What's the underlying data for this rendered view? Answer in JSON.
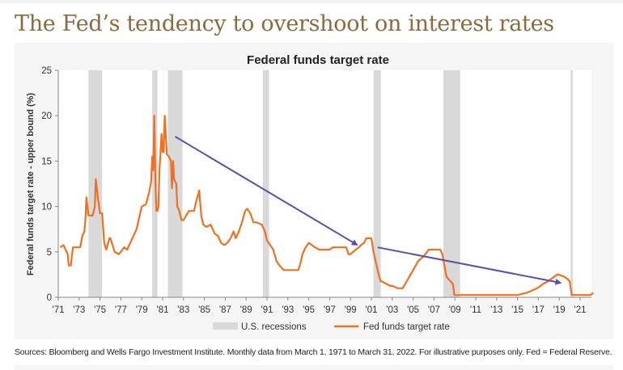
{
  "headline": "The Fed’s tendency to overshoot on interest rates",
  "footnote": "Sources: Bloomberg and Wells Fargo Investment Institute. Monthly data from March 1, 1971 to March 31, 2022. For illustrative purposes only. Fed = Federal Reserve.",
  "colors": {
    "line": "#f07022",
    "recession": "#d9d9d9",
    "arrow": "#5b4fa8",
    "headline": "#8a6a3e"
  },
  "chart_data": {
    "type": "line",
    "title": "Federal funds target rate",
    "xlabel": "",
    "ylabel": "Federal funds target rate - upper bound (%)",
    "xlim": [
      1971,
      2022.3
    ],
    "ylim": [
      0,
      25
    ],
    "yticks": [
      0,
      5,
      10,
      15,
      20,
      25
    ],
    "xticks": [
      1971,
      1973,
      1975,
      1977,
      1979,
      1981,
      1983,
      1985,
      1987,
      1989,
      1991,
      1993,
      1995,
      1997,
      1999,
      2001,
      2003,
      2005,
      2007,
      2009,
      2011,
      2013,
      2015,
      2017,
      2019,
      2021
    ],
    "xtick_labels": [
      "'71",
      "'73",
      "'75",
      "'77",
      "'79",
      "'81",
      "'83",
      "'85",
      "'87",
      "'89",
      "'91",
      "'93",
      "'95",
      "'97",
      "'99",
      "'01",
      "'03",
      "'05",
      "'07",
      "'09",
      "'11",
      "'13",
      "'15",
      "'17",
      "'19",
      "'21"
    ],
    "grid": false,
    "legend": {
      "position": "bottom",
      "entries": [
        "U.S. recessions",
        "Fed funds target rate"
      ]
    },
    "recessions": [
      [
        1973.9,
        1975.2
      ],
      [
        1980.0,
        1980.5
      ],
      [
        1981.5,
        1982.9
      ],
      [
        1990.6,
        1991.2
      ],
      [
        2001.2,
        2001.9
      ],
      [
        2007.9,
        2009.5
      ],
      [
        2020.1,
        2020.3
      ]
    ],
    "series": [
      {
        "name": "Fed funds target rate",
        "x": [
          1971.2,
          1971.5,
          1971.7,
          1971.9,
          1972.0,
          1972.2,
          1972.4,
          1972.6,
          1972.9,
          1973.1,
          1973.3,
          1973.5,
          1973.6,
          1973.7,
          1973.9,
          1974.1,
          1974.3,
          1974.5,
          1974.6,
          1974.8,
          1975.0,
          1975.2,
          1975.4,
          1975.6,
          1975.9,
          1976.0,
          1976.4,
          1976.8,
          1977.0,
          1977.3,
          1977.6,
          1977.9,
          1978.2,
          1978.5,
          1978.8,
          1979.0,
          1979.4,
          1979.7,
          1979.9,
          1980.0,
          1980.1,
          1980.2,
          1980.3,
          1980.4,
          1980.5,
          1980.6,
          1980.7,
          1980.9,
          1981.0,
          1981.1,
          1981.2,
          1981.4,
          1981.6,
          1981.8,
          1981.9,
          1982.0,
          1982.1,
          1982.3,
          1982.4,
          1982.6,
          1982.8,
          1983.0,
          1983.5,
          1984.0,
          1984.2,
          1984.5,
          1984.7,
          1984.9,
          1985.2,
          1985.6,
          1986.0,
          1986.3,
          1986.6,
          1986.9,
          1987.2,
          1987.5,
          1987.8,
          1988.0,
          1988.3,
          1988.6,
          1988.9,
          1989.1,
          1989.4,
          1989.7,
          1990.0,
          1990.5,
          1990.8,
          1991.0,
          1991.3,
          1991.6,
          1991.9,
          1992.2,
          1992.6,
          1993.0,
          1993.5,
          1994.0,
          1994.2,
          1994.4,
          1994.7,
          1995.0,
          1995.3,
          1995.6,
          1996.0,
          1996.5,
          1997.0,
          1997.3,
          1998.0,
          1998.6,
          1998.8,
          1999.0,
          1999.5,
          1999.8,
          2000.0,
          2000.3,
          2000.5,
          2001.0,
          2001.2,
          2001.4,
          2001.7,
          2001.9,
          2002.0,
          2002.8,
          2003.0,
          2003.5,
          2004.0,
          2004.5,
          2005.0,
          2005.5,
          2006.0,
          2006.5,
          2007.0,
          2007.6,
          2007.8,
          2008.0,
          2008.2,
          2008.4,
          2008.8,
          2008.95,
          2009.5,
          2011.0,
          2013.0,
          2015.0,
          2015.9,
          2016.9,
          2017.2,
          2017.5,
          2017.9,
          2018.2,
          2018.5,
          2018.8,
          2018.95,
          2019.5,
          2019.8,
          2020.0,
          2020.2,
          2020.5,
          2021.0,
          2022.0,
          2022.25
        ],
        "y": [
          5.5,
          5.75,
          5.25,
          4.75,
          3.5,
          3.5,
          5.5,
          5.5,
          5.5,
          5.5,
          6.75,
          7.25,
          8.5,
          11.0,
          9.0,
          9.0,
          9.0,
          10.0,
          13.0,
          11.0,
          9.25,
          9.25,
          6.0,
          5.25,
          6.5,
          6.5,
          5.0,
          4.75,
          5.0,
          5.5,
          5.25,
          6.0,
          6.75,
          7.5,
          9.0,
          10.0,
          10.25,
          11.5,
          12.75,
          15.5,
          14.0,
          20.0,
          13.0,
          9.5,
          9.5,
          10.0,
          14.0,
          18.0,
          16.0,
          16.0,
          20.0,
          15.75,
          15.5,
          15.0,
          12.0,
          15.0,
          13.0,
          12.5,
          10.0,
          9.5,
          8.5,
          8.5,
          9.5,
          9.5,
          10.5,
          11.75,
          9.0,
          8.0,
          7.75,
          8.0,
          7.0,
          6.75,
          6.0,
          5.75,
          6.0,
          6.5,
          7.25,
          6.5,
          7.25,
          8.25,
          9.5,
          9.75,
          9.25,
          8.25,
          8.25,
          8.0,
          7.25,
          6.25,
          5.75,
          5.25,
          4.0,
          3.5,
          3.0,
          3.0,
          3.0,
          3.0,
          3.75,
          4.75,
          5.5,
          6.0,
          5.75,
          5.5,
          5.25,
          5.25,
          5.25,
          5.5,
          5.5,
          5.5,
          4.75,
          4.75,
          5.25,
          5.5,
          5.75,
          6.0,
          6.5,
          6.5,
          5.0,
          4.0,
          2.5,
          1.75,
          1.75,
          1.25,
          1.25,
          1.0,
          1.0,
          2.0,
          3.0,
          4.0,
          4.5,
          5.25,
          5.25,
          5.25,
          4.75,
          3.5,
          2.25,
          2.0,
          1.5,
          0.25,
          0.25,
          0.25,
          0.25,
          0.25,
          0.5,
          1.0,
          1.25,
          1.5,
          1.75,
          2.0,
          2.25,
          2.5,
          2.5,
          2.25,
          2.0,
          1.75,
          0.25,
          0.25,
          0.25,
          0.25,
          0.5
        ]
      }
    ],
    "annotations": [
      {
        "type": "arrow",
        "from": [
          1982.2,
          17.7
        ],
        "to": [
          1999.6,
          5.8
        ]
      },
      {
        "type": "arrow",
        "from": [
          2001.6,
          5.5
        ],
        "to": [
          2019.1,
          1.6
        ]
      }
    ]
  }
}
